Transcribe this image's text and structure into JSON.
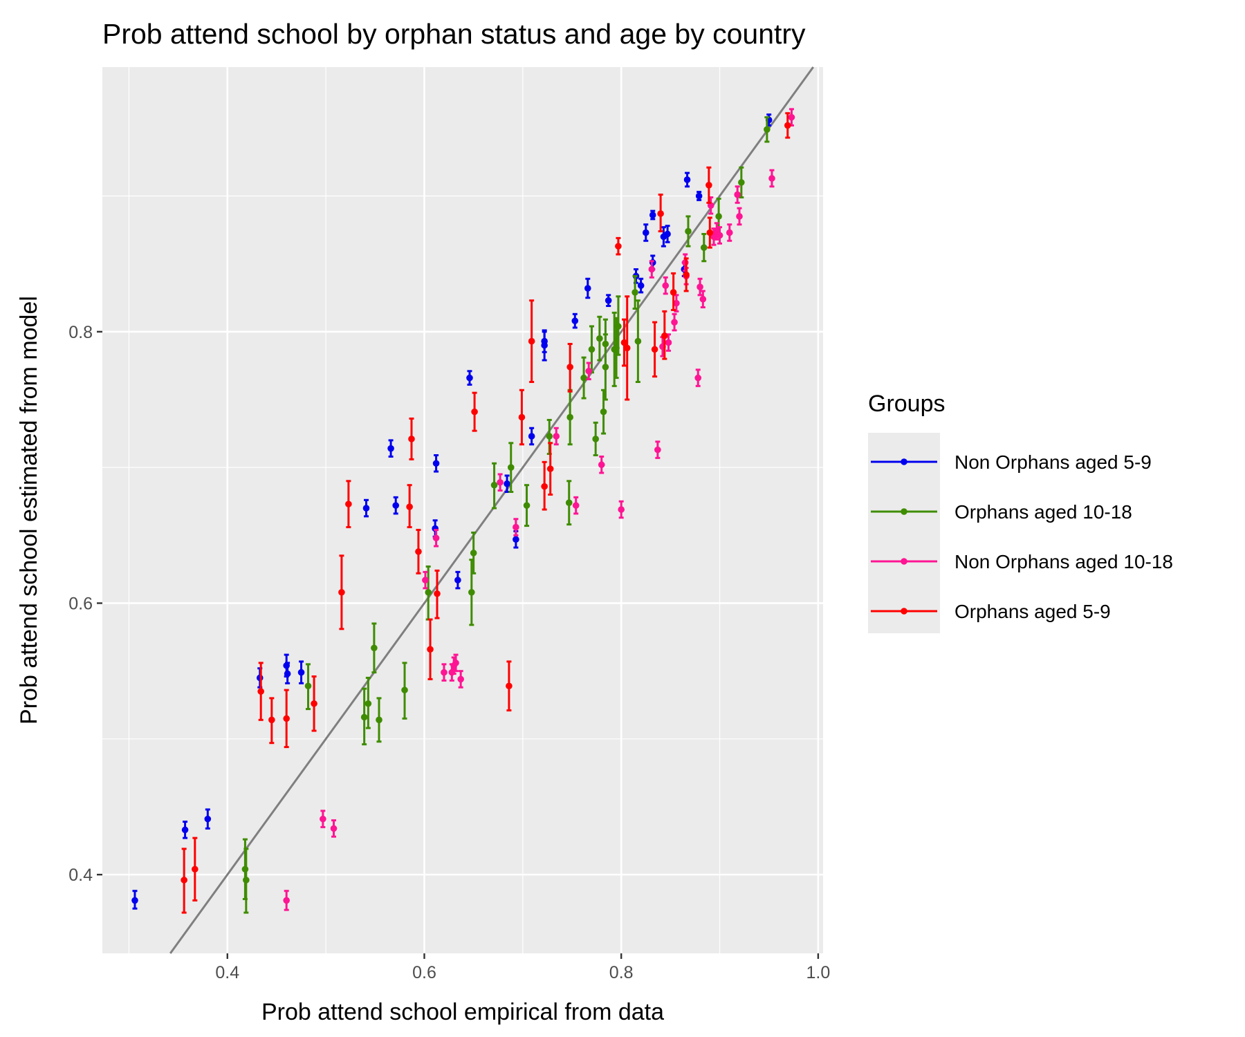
{
  "chart_data": {
    "type": "scatter",
    "title": "Prob attend school by orphan status and age by country",
    "xlabel": "Prob attend school empirical from data",
    "ylabel": "Prob attend school estimated from model",
    "xlim": [
      0.273,
      1.005
    ],
    "ylim": [
      0.342,
      0.995
    ],
    "x_ticks": [
      0.4,
      0.6,
      0.8,
      1.0
    ],
    "x_tick_labels": [
      "0.4",
      "0.6",
      "0.8",
      "1.0"
    ],
    "y_ticks": [
      0.4,
      0.6,
      0.8
    ],
    "y_tick_labels": [
      "0.4",
      "0.6",
      "0.8"
    ],
    "grid": true,
    "reference_line": {
      "slope": 1,
      "intercept": 0,
      "color": "#7f7f7f"
    },
    "legend": {
      "title": "Groups",
      "placement": "right",
      "entries": [
        "Non Orphans aged 5-9",
        "Orphans aged 10-18",
        "Non Orphans aged 10-18",
        "Orphans aged 5-9"
      ]
    },
    "series": [
      {
        "name": "Non Orphans aged 5-9",
        "color": "#0000ee",
        "points": [
          {
            "x": 0.306,
            "y": 0.381,
            "lo": 0.375,
            "hi": 0.388
          },
          {
            "x": 0.357,
            "y": 0.433,
            "lo": 0.427,
            "hi": 0.439
          },
          {
            "x": 0.38,
            "y": 0.441,
            "lo": 0.434,
            "hi": 0.448
          },
          {
            "x": 0.433,
            "y": 0.545,
            "lo": 0.538,
            "hi": 0.552
          },
          {
            "x": 0.46,
            "y": 0.554,
            "lo": 0.546,
            "hi": 0.562
          },
          {
            "x": 0.461,
            "y": 0.548,
            "lo": 0.541,
            "hi": 0.556
          },
          {
            "x": 0.475,
            "y": 0.549,
            "lo": 0.541,
            "hi": 0.557
          },
          {
            "x": 0.541,
            "y": 0.67,
            "lo": 0.664,
            "hi": 0.676
          },
          {
            "x": 0.566,
            "y": 0.714,
            "lo": 0.708,
            "hi": 0.72
          },
          {
            "x": 0.571,
            "y": 0.672,
            "lo": 0.666,
            "hi": 0.678
          },
          {
            "x": 0.611,
            "y": 0.655,
            "lo": 0.649,
            "hi": 0.661
          },
          {
            "x": 0.612,
            "y": 0.703,
            "lo": 0.697,
            "hi": 0.709
          },
          {
            "x": 0.634,
            "y": 0.617,
            "lo": 0.611,
            "hi": 0.623
          },
          {
            "x": 0.646,
            "y": 0.766,
            "lo": 0.761,
            "hi": 0.771
          },
          {
            "x": 0.684,
            "y": 0.688,
            "lo": 0.682,
            "hi": 0.694
          },
          {
            "x": 0.693,
            "y": 0.647,
            "lo": 0.641,
            "hi": 0.653
          },
          {
            "x": 0.709,
            "y": 0.723,
            "lo": 0.717,
            "hi": 0.729
          },
          {
            "x": 0.722,
            "y": 0.79,
            "lo": 0.779,
            "hi": 0.8
          },
          {
            "x": 0.722,
            "y": 0.793,
            "lo": 0.785,
            "hi": 0.801
          },
          {
            "x": 0.753,
            "y": 0.808,
            "lo": 0.803,
            "hi": 0.813
          },
          {
            "x": 0.766,
            "y": 0.832,
            "lo": 0.825,
            "hi": 0.839
          },
          {
            "x": 0.787,
            "y": 0.823,
            "lo": 0.819,
            "hi": 0.827
          },
          {
            "x": 0.815,
            "y": 0.841,
            "lo": 0.836,
            "hi": 0.846
          },
          {
            "x": 0.82,
            "y": 0.834,
            "lo": 0.829,
            "hi": 0.839
          },
          {
            "x": 0.825,
            "y": 0.873,
            "lo": 0.867,
            "hi": 0.879
          },
          {
            "x": 0.832,
            "y": 0.886,
            "lo": 0.883,
            "hi": 0.889
          },
          {
            "x": 0.832,
            "y": 0.851,
            "lo": 0.846,
            "hi": 0.856
          },
          {
            "x": 0.843,
            "y": 0.87,
            "lo": 0.863,
            "hi": 0.877
          },
          {
            "x": 0.847,
            "y": 0.872,
            "lo": 0.866,
            "hi": 0.878
          },
          {
            "x": 0.864,
            "y": 0.846,
            "lo": 0.841,
            "hi": 0.851
          },
          {
            "x": 0.867,
            "y": 0.912,
            "lo": 0.907,
            "hi": 0.917
          },
          {
            "x": 0.879,
            "y": 0.9,
            "lo": 0.897,
            "hi": 0.903
          },
          {
            "x": 0.95,
            "y": 0.956,
            "lo": 0.952,
            "hi": 0.96
          }
        ]
      },
      {
        "name": "Orphans aged 10-18",
        "color": "#3f8c00",
        "points": [
          {
            "x": 0.418,
            "y": 0.404,
            "lo": 0.382,
            "hi": 0.426
          },
          {
            "x": 0.419,
            "y": 0.396,
            "lo": 0.372,
            "hi": 0.419
          },
          {
            "x": 0.482,
            "y": 0.539,
            "lo": 0.522,
            "hi": 0.555
          },
          {
            "x": 0.539,
            "y": 0.516,
            "lo": 0.496,
            "hi": 0.537
          },
          {
            "x": 0.543,
            "y": 0.526,
            "lo": 0.508,
            "hi": 0.545
          },
          {
            "x": 0.549,
            "y": 0.567,
            "lo": 0.549,
            "hi": 0.585
          },
          {
            "x": 0.554,
            "y": 0.514,
            "lo": 0.498,
            "hi": 0.53
          },
          {
            "x": 0.58,
            "y": 0.536,
            "lo": 0.515,
            "hi": 0.556
          },
          {
            "x": 0.604,
            "y": 0.608,
            "lo": 0.588,
            "hi": 0.627
          },
          {
            "x": 0.648,
            "y": 0.608,
            "lo": 0.584,
            "hi": 0.632
          },
          {
            "x": 0.65,
            "y": 0.637,
            "lo": 0.622,
            "hi": 0.652
          },
          {
            "x": 0.671,
            "y": 0.687,
            "lo": 0.67,
            "hi": 0.703
          },
          {
            "x": 0.688,
            "y": 0.7,
            "lo": 0.682,
            "hi": 0.718
          },
          {
            "x": 0.704,
            "y": 0.672,
            "lo": 0.657,
            "hi": 0.687
          },
          {
            "x": 0.727,
            "y": 0.723,
            "lo": 0.71,
            "hi": 0.735
          },
          {
            "x": 0.747,
            "y": 0.674,
            "lo": 0.658,
            "hi": 0.69
          },
          {
            "x": 0.748,
            "y": 0.737,
            "lo": 0.717,
            "hi": 0.757
          },
          {
            "x": 0.762,
            "y": 0.766,
            "lo": 0.751,
            "hi": 0.781
          },
          {
            "x": 0.77,
            "y": 0.787,
            "lo": 0.77,
            "hi": 0.804
          },
          {
            "x": 0.774,
            "y": 0.721,
            "lo": 0.709,
            "hi": 0.733
          },
          {
            "x": 0.778,
            "y": 0.795,
            "lo": 0.779,
            "hi": 0.811
          },
          {
            "x": 0.782,
            "y": 0.741,
            "lo": 0.725,
            "hi": 0.757
          },
          {
            "x": 0.784,
            "y": 0.774,
            "lo": 0.75,
            "hi": 0.798
          },
          {
            "x": 0.784,
            "y": 0.791,
            "lo": 0.773,
            "hi": 0.809
          },
          {
            "x": 0.793,
            "y": 0.787,
            "lo": 0.76,
            "hi": 0.814
          },
          {
            "x": 0.795,
            "y": 0.788,
            "lo": 0.766,
            "hi": 0.81
          },
          {
            "x": 0.797,
            "y": 0.804,
            "lo": 0.783,
            "hi": 0.826
          },
          {
            "x": 0.814,
            "y": 0.829,
            "lo": 0.817,
            "hi": 0.841
          },
          {
            "x": 0.817,
            "y": 0.793,
            "lo": 0.763,
            "hi": 0.823
          },
          {
            "x": 0.868,
            "y": 0.874,
            "lo": 0.863,
            "hi": 0.885
          },
          {
            "x": 0.884,
            "y": 0.862,
            "lo": 0.852,
            "hi": 0.872
          },
          {
            "x": 0.899,
            "y": 0.885,
            "lo": 0.872,
            "hi": 0.898
          },
          {
            "x": 0.922,
            "y": 0.91,
            "lo": 0.899,
            "hi": 0.921
          },
          {
            "x": 0.948,
            "y": 0.949,
            "lo": 0.94,
            "hi": 0.958
          }
        ]
      },
      {
        "name": "Non Orphans aged 10-18",
        "color": "#ff1493",
        "points": [
          {
            "x": 0.46,
            "y": 0.381,
            "lo": 0.374,
            "hi": 0.388
          },
          {
            "x": 0.497,
            "y": 0.441,
            "lo": 0.435,
            "hi": 0.447
          },
          {
            "x": 0.508,
            "y": 0.434,
            "lo": 0.428,
            "hi": 0.44
          },
          {
            "x": 0.601,
            "y": 0.617,
            "lo": 0.611,
            "hi": 0.623
          },
          {
            "x": 0.612,
            "y": 0.648,
            "lo": 0.642,
            "hi": 0.654
          },
          {
            "x": 0.62,
            "y": 0.549,
            "lo": 0.543,
            "hi": 0.555
          },
          {
            "x": 0.628,
            "y": 0.549,
            "lo": 0.543,
            "hi": 0.555
          },
          {
            "x": 0.63,
            "y": 0.554,
            "lo": 0.548,
            "hi": 0.56
          },
          {
            "x": 0.632,
            "y": 0.556,
            "lo": 0.55,
            "hi": 0.562
          },
          {
            "x": 0.637,
            "y": 0.544,
            "lo": 0.538,
            "hi": 0.55
          },
          {
            "x": 0.677,
            "y": 0.689,
            "lo": 0.683,
            "hi": 0.695
          },
          {
            "x": 0.693,
            "y": 0.656,
            "lo": 0.65,
            "hi": 0.662
          },
          {
            "x": 0.734,
            "y": 0.723,
            "lo": 0.717,
            "hi": 0.729
          },
          {
            "x": 0.754,
            "y": 0.672,
            "lo": 0.666,
            "hi": 0.678
          },
          {
            "x": 0.767,
            "y": 0.771,
            "lo": 0.765,
            "hi": 0.777
          },
          {
            "x": 0.78,
            "y": 0.702,
            "lo": 0.696,
            "hi": 0.708
          },
          {
            "x": 0.8,
            "y": 0.669,
            "lo": 0.663,
            "hi": 0.675
          },
          {
            "x": 0.831,
            "y": 0.846,
            "lo": 0.84,
            "hi": 0.852
          },
          {
            "x": 0.837,
            "y": 0.713,
            "lo": 0.707,
            "hi": 0.719
          },
          {
            "x": 0.842,
            "y": 0.789,
            "lo": 0.782,
            "hi": 0.796
          },
          {
            "x": 0.845,
            "y": 0.834,
            "lo": 0.828,
            "hi": 0.84
          },
          {
            "x": 0.848,
            "y": 0.792,
            "lo": 0.786,
            "hi": 0.798
          },
          {
            "x": 0.854,
            "y": 0.807,
            "lo": 0.801,
            "hi": 0.813
          },
          {
            "x": 0.856,
            "y": 0.821,
            "lo": 0.815,
            "hi": 0.827
          },
          {
            "x": 0.865,
            "y": 0.851,
            "lo": 0.845,
            "hi": 0.857
          },
          {
            "x": 0.866,
            "y": 0.841,
            "lo": 0.835,
            "hi": 0.847
          },
          {
            "x": 0.878,
            "y": 0.766,
            "lo": 0.76,
            "hi": 0.772
          },
          {
            "x": 0.88,
            "y": 0.833,
            "lo": 0.827,
            "hi": 0.839
          },
          {
            "x": 0.883,
            "y": 0.824,
            "lo": 0.818,
            "hi": 0.83
          },
          {
            "x": 0.891,
            "y": 0.893,
            "lo": 0.887,
            "hi": 0.899
          },
          {
            "x": 0.894,
            "y": 0.87,
            "lo": 0.864,
            "hi": 0.876
          },
          {
            "x": 0.897,
            "y": 0.874,
            "lo": 0.868,
            "hi": 0.88
          },
          {
            "x": 0.9,
            "y": 0.871,
            "lo": 0.865,
            "hi": 0.877
          },
          {
            "x": 0.91,
            "y": 0.873,
            "lo": 0.867,
            "hi": 0.879
          },
          {
            "x": 0.918,
            "y": 0.901,
            "lo": 0.895,
            "hi": 0.907
          },
          {
            "x": 0.92,
            "y": 0.885,
            "lo": 0.879,
            "hi": 0.891
          },
          {
            "x": 0.953,
            "y": 0.913,
            "lo": 0.907,
            "hi": 0.919
          },
          {
            "x": 0.973,
            "y": 0.958,
            "lo": 0.952,
            "hi": 0.964
          }
        ]
      },
      {
        "name": "Orphans aged 5-9",
        "color": "#ff0000",
        "points": [
          {
            "x": 0.356,
            "y": 0.396,
            "lo": 0.372,
            "hi": 0.419
          },
          {
            "x": 0.367,
            "y": 0.404,
            "lo": 0.381,
            "hi": 0.427
          },
          {
            "x": 0.434,
            "y": 0.535,
            "lo": 0.514,
            "hi": 0.556
          },
          {
            "x": 0.445,
            "y": 0.514,
            "lo": 0.497,
            "hi": 0.53
          },
          {
            "x": 0.46,
            "y": 0.515,
            "lo": 0.494,
            "hi": 0.536
          },
          {
            "x": 0.488,
            "y": 0.526,
            "lo": 0.506,
            "hi": 0.546
          },
          {
            "x": 0.516,
            "y": 0.608,
            "lo": 0.581,
            "hi": 0.635
          },
          {
            "x": 0.523,
            "y": 0.673,
            "lo": 0.656,
            "hi": 0.69
          },
          {
            "x": 0.585,
            "y": 0.671,
            "lo": 0.656,
            "hi": 0.687
          },
          {
            "x": 0.587,
            "y": 0.721,
            "lo": 0.706,
            "hi": 0.736
          },
          {
            "x": 0.594,
            "y": 0.638,
            "lo": 0.622,
            "hi": 0.654
          },
          {
            "x": 0.606,
            "y": 0.566,
            "lo": 0.544,
            "hi": 0.588
          },
          {
            "x": 0.613,
            "y": 0.607,
            "lo": 0.589,
            "hi": 0.624
          },
          {
            "x": 0.651,
            "y": 0.741,
            "lo": 0.727,
            "hi": 0.755
          },
          {
            "x": 0.686,
            "y": 0.539,
            "lo": 0.521,
            "hi": 0.557
          },
          {
            "x": 0.699,
            "y": 0.737,
            "lo": 0.717,
            "hi": 0.757
          },
          {
            "x": 0.709,
            "y": 0.793,
            "lo": 0.763,
            "hi": 0.823
          },
          {
            "x": 0.722,
            "y": 0.686,
            "lo": 0.669,
            "hi": 0.704
          },
          {
            "x": 0.728,
            "y": 0.699,
            "lo": 0.68,
            "hi": 0.718
          },
          {
            "x": 0.748,
            "y": 0.774,
            "lo": 0.756,
            "hi": 0.791
          },
          {
            "x": 0.797,
            "y": 0.863,
            "lo": 0.857,
            "hi": 0.869
          },
          {
            "x": 0.803,
            "y": 0.792,
            "lo": 0.775,
            "hi": 0.809
          },
          {
            "x": 0.806,
            "y": 0.788,
            "lo": 0.75,
            "hi": 0.826
          },
          {
            "x": 0.834,
            "y": 0.787,
            "lo": 0.767,
            "hi": 0.807
          },
          {
            "x": 0.84,
            "y": 0.887,
            "lo": 0.874,
            "hi": 0.901
          },
          {
            "x": 0.844,
            "y": 0.797,
            "lo": 0.78,
            "hi": 0.815
          },
          {
            "x": 0.853,
            "y": 0.829,
            "lo": 0.816,
            "hi": 0.843
          },
          {
            "x": 0.866,
            "y": 0.842,
            "lo": 0.83,
            "hi": 0.854
          },
          {
            "x": 0.889,
            "y": 0.908,
            "lo": 0.895,
            "hi": 0.921
          },
          {
            "x": 0.89,
            "y": 0.873,
            "lo": 0.862,
            "hi": 0.884
          },
          {
            "x": 0.969,
            "y": 0.952,
            "lo": 0.943,
            "hi": 0.961
          }
        ]
      }
    ]
  }
}
